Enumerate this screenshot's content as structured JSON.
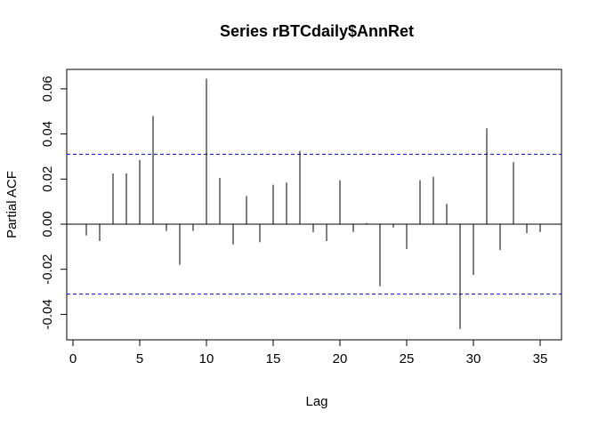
{
  "chart_data": {
    "type": "bar",
    "title": "Series  rBTCdaily$AnnRet",
    "xlabel": "Lag",
    "ylabel": "Partial ACF",
    "xlim": [
      0,
      36
    ],
    "ylim": [
      -0.0465,
      0.0685
    ],
    "x_ticks": [
      0,
      5,
      10,
      15,
      20,
      25,
      30,
      35
    ],
    "y_ticks": [
      -0.04,
      -0.02,
      0.0,
      0.02,
      0.04,
      0.06
    ],
    "y_tick_labels": [
      "-0.04",
      "-0.02",
      "0.00",
      "0.02",
      "0.04",
      "0.06"
    ],
    "x_tick_labels": [
      "0",
      "5",
      "10",
      "15",
      "20",
      "25",
      "30",
      "35"
    ],
    "confidence_bounds": [
      0.031,
      -0.031
    ],
    "confidence_color": "#0000cc",
    "series": [
      {
        "x": [
          1,
          2,
          3,
          4,
          5,
          6,
          7,
          8,
          9,
          10,
          11,
          12,
          13,
          14,
          15,
          16,
          17,
          18,
          19,
          20,
          21,
          22,
          23,
          24,
          25,
          26,
          27,
          28,
          29,
          30,
          31,
          32,
          33,
          34,
          35
        ],
        "values": [
          -0.005,
          -0.0075,
          0.0225,
          0.0225,
          0.0285,
          0.048,
          -0.003,
          -0.018,
          -0.003,
          0.0645,
          0.0205,
          -0.009,
          0.0125,
          -0.008,
          0.0175,
          0.0185,
          0.0325,
          -0.0035,
          -0.0075,
          0.0195,
          -0.0035,
          0.0005,
          -0.0275,
          -0.0015,
          -0.011,
          0.0195,
          0.021,
          0.009,
          -0.0465,
          -0.0225,
          0.0425,
          -0.0115,
          0.0275,
          -0.004,
          -0.0035
        ]
      }
    ],
    "grid": false,
    "legend": "none"
  }
}
